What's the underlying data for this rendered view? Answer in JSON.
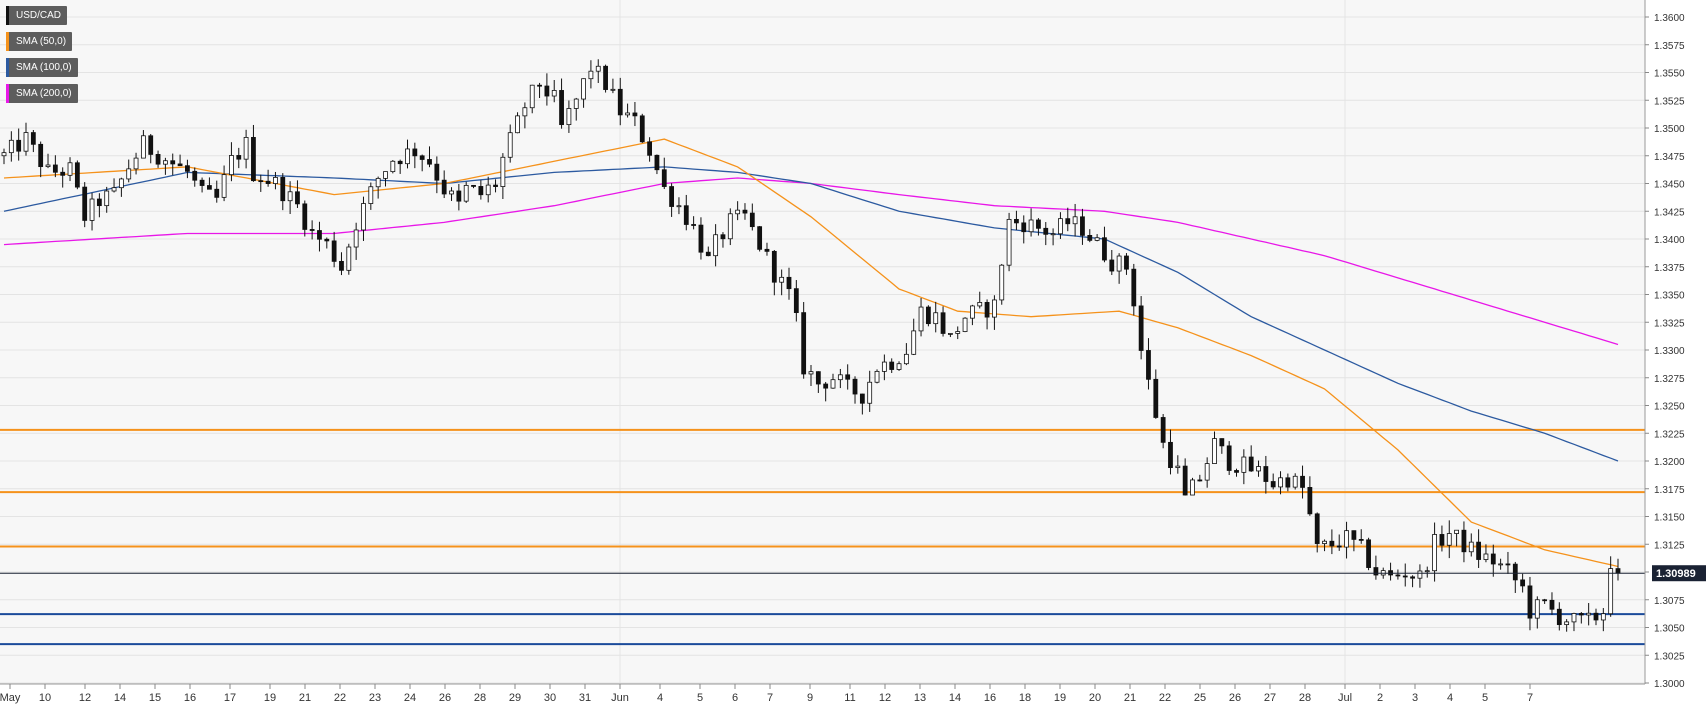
{
  "legend": {
    "items": [
      {
        "label": "USD/CAD",
        "color": "#111111",
        "name": "legend-usdcad"
      },
      {
        "label": "SMA (50,0)",
        "color": "#f5921b",
        "name": "legend-sma-50"
      },
      {
        "label": "SMA (100,0)",
        "color": "#2c5aa0",
        "name": "legend-sma-100"
      },
      {
        "label": "SMA (200,0)",
        "color": "#e817e8",
        "name": "legend-sma-200"
      }
    ]
  },
  "current_price_label": "1.30989",
  "chart_data": {
    "type": "candlestick",
    "symbol": "USD/CAD",
    "ylim": [
      1.2985,
      1.3615
    ],
    "y_ticks": [
      "1.3000",
      "1.3025",
      "1.3050",
      "1.3075",
      "1.3100",
      "1.3125",
      "1.3150",
      "1.3175",
      "1.3200",
      "1.3225",
      "1.3250",
      "1.3275",
      "1.3300",
      "1.3325",
      "1.3350",
      "1.3375",
      "1.3400",
      "1.3425",
      "1.3450",
      "1.3475",
      "1.3500",
      "1.3525",
      "1.3550",
      "1.3575",
      "1.3600"
    ],
    "x_ticks": [
      "May",
      "10",
      "12",
      "14",
      "15",
      "16",
      "17",
      "19",
      "21",
      "22",
      "23",
      "24",
      "26",
      "28",
      "29",
      "30",
      "31",
      "Jun",
      "4",
      "5",
      "6",
      "7",
      "9",
      "11",
      "12",
      "13",
      "14",
      "16",
      "18",
      "19",
      "20",
      "21",
      "22",
      "25",
      "26",
      "27",
      "28",
      "Jul",
      "2",
      "3",
      "4",
      "5",
      "7"
    ],
    "horizontal_levels": [
      {
        "value": 1.3228,
        "color": "#f5921b"
      },
      {
        "value": 1.3172,
        "color": "#f5921b"
      },
      {
        "value": 1.3123,
        "color": "#f5921b"
      },
      {
        "value": 1.3062,
        "color": "#1a4a9a"
      },
      {
        "value": 1.3035,
        "color": "#1a4a9a"
      }
    ],
    "current_price": 1.30989,
    "price_path": [
      [
        0,
        1.3475
      ],
      [
        3,
        1.349
      ],
      [
        6,
        1.346
      ],
      [
        9,
        1.3462
      ],
      [
        11,
        1.342
      ],
      [
        13,
        1.3435
      ],
      [
        15,
        1.344
      ],
      [
        17,
        1.3465
      ],
      [
        19,
        1.3485
      ],
      [
        22,
        1.3472
      ],
      [
        25,
        1.346
      ],
      [
        27,
        1.344
      ],
      [
        29,
        1.3435
      ],
      [
        31,
        1.347
      ],
      [
        33,
        1.3485
      ],
      [
        34,
        1.346
      ],
      [
        37,
        1.345
      ],
      [
        40,
        1.343
      ],
      [
        42,
        1.3405
      ],
      [
        44,
        1.3395
      ],
      [
        46,
        1.3375
      ],
      [
        48,
        1.3415
      ],
      [
        51,
        1.3455
      ],
      [
        53,
        1.3472
      ],
      [
        56,
        1.348
      ],
      [
        58,
        1.347
      ],
      [
        60,
        1.3445
      ],
      [
        62,
        1.343
      ],
      [
        63,
        1.3445
      ],
      [
        65,
        1.344
      ],
      [
        67,
        1.345
      ],
      [
        68,
        1.3472
      ],
      [
        71,
        1.352
      ],
      [
        73,
        1.354
      ],
      [
        75,
        1.3525
      ],
      [
        76,
        1.35
      ],
      [
        78,
        1.3525
      ],
      [
        80,
        1.3555
      ],
      [
        82,
        1.354
      ],
      [
        84,
        1.3515
      ],
      [
        86,
        1.3505
      ],
      [
        88,
        1.348
      ],
      [
        90,
        1.3445
      ],
      [
        92,
        1.343
      ],
      [
        94,
        1.341
      ],
      [
        96,
        1.338
      ],
      [
        97,
        1.3395
      ],
      [
        99,
        1.3415
      ],
      [
        101,
        1.342
      ],
      [
        103,
        1.3395
      ],
      [
        105,
        1.337
      ],
      [
        107,
        1.335
      ],
      [
        108,
        1.3325
      ],
      [
        109,
        1.3285
      ],
      [
        111,
        1.327
      ],
      [
        113,
        1.3275
      ],
      [
        115,
        1.3265
      ],
      [
        117,
        1.326
      ],
      [
        119,
        1.3285
      ],
      [
        121,
        1.329
      ],
      [
        123,
        1.33
      ],
      [
        125,
        1.3335
      ],
      [
        127,
        1.333
      ],
      [
        129,
        1.331
      ],
      [
        131,
        1.333
      ],
      [
        133,
        1.3335
      ],
      [
        135,
        1.334
      ],
      [
        136,
        1.338
      ],
      [
        137,
        1.3415
      ],
      [
        139,
        1.3415
      ],
      [
        141,
        1.341
      ],
      [
        143,
        1.3405
      ],
      [
        145,
        1.3415
      ],
      [
        147,
        1.341
      ],
      [
        149,
        1.3395
      ],
      [
        151,
        1.338
      ],
      [
        153,
        1.3375
      ],
      [
        154,
        1.3345
      ],
      [
        155,
        1.33
      ],
      [
        156,
        1.327
      ],
      [
        158,
        1.3215
      ],
      [
        160,
        1.319
      ],
      [
        161,
        1.3165
      ],
      [
        163,
        1.3185
      ],
      [
        165,
        1.3215
      ],
      [
        167,
        1.32
      ],
      [
        169,
        1.3195
      ],
      [
        171,
        1.319
      ],
      [
        173,
        1.318
      ],
      [
        175,
        1.3185
      ],
      [
        177,
        1.3175
      ],
      [
        178,
        1.315
      ],
      [
        179,
        1.312
      ],
      [
        181,
        1.3125
      ],
      [
        183,
        1.313
      ],
      [
        185,
        1.312
      ],
      [
        187,
        1.31
      ],
      [
        189,
        1.3095
      ],
      [
        191,
        1.31
      ],
      [
        193,
        1.3095
      ],
      [
        195,
        1.3125
      ],
      [
        197,
        1.3135
      ],
      [
        199,
        1.3125
      ],
      [
        201,
        1.3115
      ],
      [
        203,
        1.311
      ],
      [
        205,
        1.31
      ],
      [
        207,
        1.3085
      ],
      [
        208,
        1.3065
      ],
      [
        210,
        1.307
      ],
      [
        212,
        1.306
      ],
      [
        214,
        1.3055
      ],
      [
        216,
        1.3055
      ],
      [
        218,
        1.3065
      ],
      [
        219,
        1.311
      ],
      [
        220,
        1.3099
      ]
    ],
    "sma_50": [
      [
        0,
        1.3455
      ],
      [
        25,
        1.3465
      ],
      [
        45,
        1.344
      ],
      [
        60,
        1.345
      ],
      [
        75,
        1.347
      ],
      [
        90,
        1.349
      ],
      [
        100,
        1.3465
      ],
      [
        110,
        1.342
      ],
      [
        122,
        1.3355
      ],
      [
        130,
        1.3335
      ],
      [
        140,
        1.333
      ],
      [
        152,
        1.3335
      ],
      [
        160,
        1.332
      ],
      [
        170,
        1.3295
      ],
      [
        180,
        1.3265
      ],
      [
        190,
        1.321
      ],
      [
        200,
        1.3145
      ],
      [
        210,
        1.312
      ],
      [
        220,
        1.3105
      ]
    ],
    "sma_100": [
      [
        0,
        1.3425
      ],
      [
        25,
        1.346
      ],
      [
        45,
        1.3455
      ],
      [
        60,
        1.345
      ],
      [
        75,
        1.346
      ],
      [
        90,
        1.3465
      ],
      [
        100,
        1.346
      ],
      [
        110,
        1.345
      ],
      [
        122,
        1.3425
      ],
      [
        135,
        1.341
      ],
      [
        150,
        1.34
      ],
      [
        160,
        1.337
      ],
      [
        170,
        1.333
      ],
      [
        180,
        1.33
      ],
      [
        190,
        1.327
      ],
      [
        200,
        1.3245
      ],
      [
        210,
        1.3225
      ],
      [
        220,
        1.32
      ]
    ],
    "sma_200": [
      [
        0,
        1.3395
      ],
      [
        25,
        1.3405
      ],
      [
        45,
        1.3405
      ],
      [
        60,
        1.3415
      ],
      [
        75,
        1.343
      ],
      [
        90,
        1.345
      ],
      [
        100,
        1.3455
      ],
      [
        110,
        1.345
      ],
      [
        122,
        1.344
      ],
      [
        135,
        1.343
      ],
      [
        150,
        1.3425
      ],
      [
        160,
        1.3415
      ],
      [
        170,
        1.34
      ],
      [
        180,
        1.3385
      ],
      [
        190,
        1.3365
      ],
      [
        200,
        1.3345
      ],
      [
        210,
        1.3325
      ],
      [
        220,
        1.3305
      ]
    ]
  }
}
